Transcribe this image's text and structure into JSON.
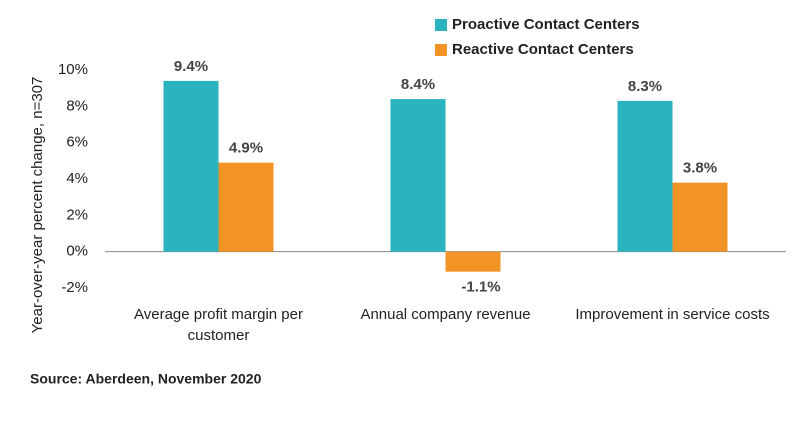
{
  "chart_data": {
    "type": "bar",
    "y_label": "Year-over-year percent change, n=307",
    "source": "Source: Aberdeen, November 2020",
    "categories": [
      "Average profit margin per customer",
      "Annual company revenue",
      "Improvement in service costs"
    ],
    "series": [
      {
        "name": "Proactive Contact Centers",
        "color": "#2bb3bf",
        "values": [
          9.4,
          8.4,
          8.3
        ],
        "value_labels": [
          "9.4%",
          "8.4%",
          "8.3%"
        ]
      },
      {
        "name": "Reactive Contact Centers",
        "color": "#f29325",
        "values": [
          4.9,
          -1.1,
          3.8
        ],
        "value_labels": [
          "4.9%",
          "-1.1%",
          "3.8%"
        ]
      }
    ],
    "ylim": [
      -2,
      10
    ],
    "yticks": [
      {
        "value": -2,
        "label": "-2%"
      },
      {
        "value": 0,
        "label": "0%"
      },
      {
        "value": 2,
        "label": "2%"
      },
      {
        "value": 4,
        "label": "4%"
      },
      {
        "value": 6,
        "label": "6%"
      },
      {
        "value": 8,
        "label": "8%"
      },
      {
        "value": 10,
        "label": "10%"
      }
    ],
    "legend": "top"
  }
}
